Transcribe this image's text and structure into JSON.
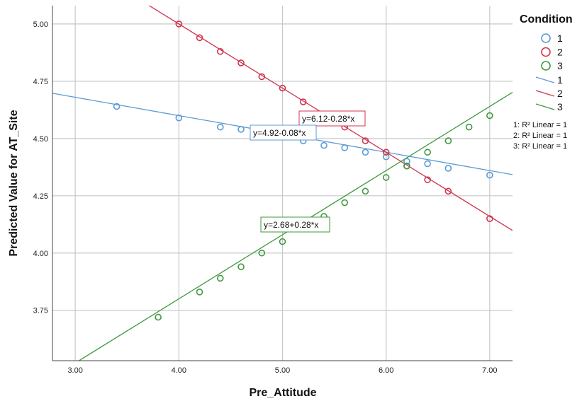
{
  "chart_data": {
    "type": "scatter",
    "xlabel": "Pre_Attitude",
    "ylabel": "Predicted Value for AT_Site",
    "xlim": [
      2.78,
      7.22
    ],
    "ylim": [
      3.53,
      5.08
    ],
    "x_ticks": [
      "3.00",
      "4.00",
      "5.00",
      "6.00",
      "7.00"
    ],
    "y_ticks": [
      "3.75",
      "4.00",
      "4.25",
      "4.50",
      "4.75",
      "5.00"
    ],
    "grid": true,
    "legend": {
      "title": "Condition",
      "position": "right",
      "marker_entries": [
        "1",
        "2",
        "3"
      ],
      "line_entries": [
        "1",
        "2",
        "3"
      ],
      "r2_notes": [
        "1: R² Linear = 1",
        "2: R² Linear = 1",
        "3: R² Linear = 1"
      ]
    },
    "series": [
      {
        "name": "1",
        "color": "#5b9bd5",
        "equation": "y=4.92-0.08*x",
        "intercept": 4.92,
        "slope": -0.08,
        "x": [
          3.4,
          4.0,
          4.4,
          4.6,
          5.2,
          5.4,
          5.6,
          5.8,
          6.0,
          6.2,
          6.4,
          6.6,
          7.0
        ],
        "y": [
          4.64,
          4.59,
          4.55,
          4.54,
          4.49,
          4.47,
          4.46,
          4.44,
          4.42,
          4.4,
          4.39,
          4.37,
          4.34
        ]
      },
      {
        "name": "2",
        "color": "#d0344f",
        "equation": "y=6.12-0.28*x",
        "intercept": 6.12,
        "slope": -0.28,
        "x": [
          4.0,
          4.2,
          4.4,
          4.6,
          4.8,
          5.0,
          5.2,
          5.6,
          5.8,
          6.0,
          6.2,
          6.4,
          6.6,
          7.0
        ],
        "y": [
          5.0,
          4.94,
          4.88,
          4.83,
          4.77,
          4.72,
          4.66,
          4.55,
          4.49,
          4.44,
          4.38,
          4.32,
          4.27,
          4.15
        ]
      },
      {
        "name": "3",
        "color": "#3e9a3e",
        "equation": "y=2.68+0.28*x",
        "intercept": 2.68,
        "slope": 0.28,
        "x": [
          3.8,
          4.2,
          4.4,
          4.6,
          4.8,
          5.0,
          5.4,
          5.6,
          5.8,
          6.0,
          6.2,
          6.4,
          6.6,
          6.8,
          7.0
        ],
        "y": [
          3.72,
          3.83,
          3.89,
          3.94,
          4.0,
          4.05,
          4.16,
          4.22,
          4.27,
          4.33,
          4.38,
          4.44,
          4.49,
          4.55,
          4.6
        ]
      }
    ]
  }
}
